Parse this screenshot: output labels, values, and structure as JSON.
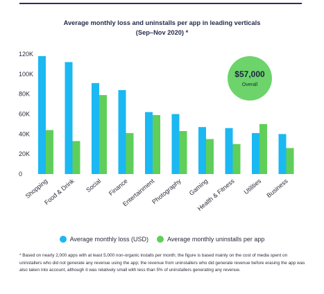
{
  "title_lines": [
    "Average monthly loss and uninstalls per app in leading verticals",
    "(Sep–Nov 2020) *"
  ],
  "colors": {
    "loss": "#1bb8f2",
    "uninstalls": "#5fcf5a",
    "badge": "#6cd46a",
    "rule": "#2b2d63",
    "axis_text": "#2b2b3a"
  },
  "chart_data": {
    "type": "bar",
    "title": "Average monthly loss and uninstalls per app in leading verticals (Sep–Nov 2020) *",
    "categories": [
      "Shopping",
      "Food & Drink",
      "Social",
      "Finance",
      "Entertainment",
      "Photography",
      "Gaming",
      "Health & Fitness",
      "Utilities",
      "Business"
    ],
    "series": [
      {
        "name": "Average monthly loss (USD)",
        "values": [
          118000,
          112000,
          91000,
          84000,
          62000,
          60000,
          47000,
          46000,
          41000,
          40000
        ]
      },
      {
        "name": "Average monthly uninstalls per app",
        "values": [
          44000,
          33000,
          79000,
          41000,
          59000,
          43000,
          35000,
          30000,
          50000,
          26000
        ]
      }
    ],
    "yticks": [
      "0",
      "20K",
      "40K",
      "60K",
      "80K",
      "100K",
      "120K"
    ],
    "ylim": [
      0,
      120000
    ],
    "grid": false,
    "legend": "bottom",
    "annotation": {
      "value": "$57,000",
      "label": "Overall"
    }
  },
  "footnote": "* Based on nearly 2,000 apps with at least 5,000 non-organic installs per month; the figure is based mainly on the cost of media spent on uninstallers who did not generate any revenue using the app; the revenue from uninstallers who did generate revenue before erasing the app was also taken into account, although it was relatively small with less than 5% of uninstallers generating any revenue."
}
